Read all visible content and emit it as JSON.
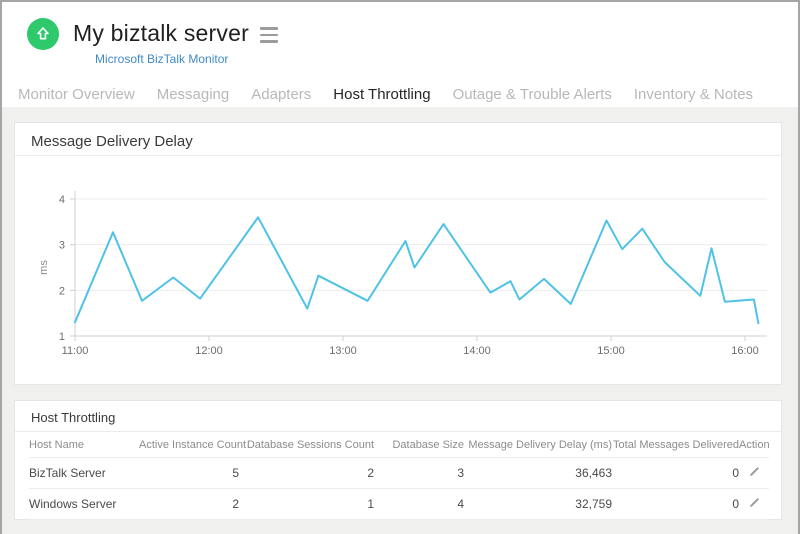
{
  "header": {
    "title": "My biztalk server",
    "subtitle": "Microsoft BizTalk Monitor",
    "status_icon": "arrow-up-icon",
    "menu_icon": "hamburger-icon"
  },
  "tabs": [
    {
      "label": "Monitor Overview",
      "active": false
    },
    {
      "label": "Messaging",
      "active": false
    },
    {
      "label": "Adapters",
      "active": false
    },
    {
      "label": "Host Throttling",
      "active": true
    },
    {
      "label": "Outage & Trouble Alerts",
      "active": false
    },
    {
      "label": "Inventory & Notes",
      "active": false
    }
  ],
  "chart_card": {
    "title": "Message Delivery Delay"
  },
  "chart_data": {
    "type": "line",
    "title": "Message Delivery Delay",
    "xlabel": "",
    "ylabel": "ms",
    "ylim": [
      1,
      4
    ],
    "yticks": [
      1,
      2,
      3,
      4
    ],
    "xticks": [
      "11:00",
      "12:00",
      "13:00",
      "14:00",
      "15:00",
      "16:00"
    ],
    "x_axis_start": "11:00",
    "x_minutes_from_start": [
      0,
      17,
      30,
      44,
      56,
      82,
      104,
      109,
      131,
      148,
      152,
      165,
      186,
      195,
      199,
      210,
      222,
      238,
      245,
      254,
      264,
      280,
      285,
      291,
      304,
      306
    ],
    "values": [
      1.3,
      3.27,
      1.77,
      2.28,
      1.82,
      3.6,
      1.6,
      2.32,
      1.77,
      3.08,
      2.5,
      3.45,
      1.95,
      2.2,
      1.8,
      2.25,
      1.7,
      3.53,
      2.9,
      3.35,
      2.62,
      1.88,
      2.92,
      1.75,
      1.8,
      1.28
    ],
    "grid": "horizontal",
    "legend": "none",
    "line_color": "#4EC3E6"
  },
  "table_card": {
    "title": "Host Throttling",
    "columns": [
      "Host Name",
      "Active Instance Count",
      "Database Sessions Count",
      "Database Size",
      "Message Delivery Delay (ms)",
      "Total Messages Delivered",
      "Action"
    ],
    "rows": [
      [
        "BizTalk Server",
        "5",
        "2",
        "3",
        "36,463",
        "0"
      ],
      [
        "Windows Server",
        "2",
        "1",
        "4",
        "32,759",
        "0"
      ]
    ],
    "action_icon": "pencil-icon"
  },
  "colors": {
    "accent_green": "#2DC96B",
    "link_blue": "#4189C8",
    "chart_line": "#4EC3E6",
    "active_tab_underline": "#B5B5B5",
    "page_background": "#F0F0EF"
  }
}
